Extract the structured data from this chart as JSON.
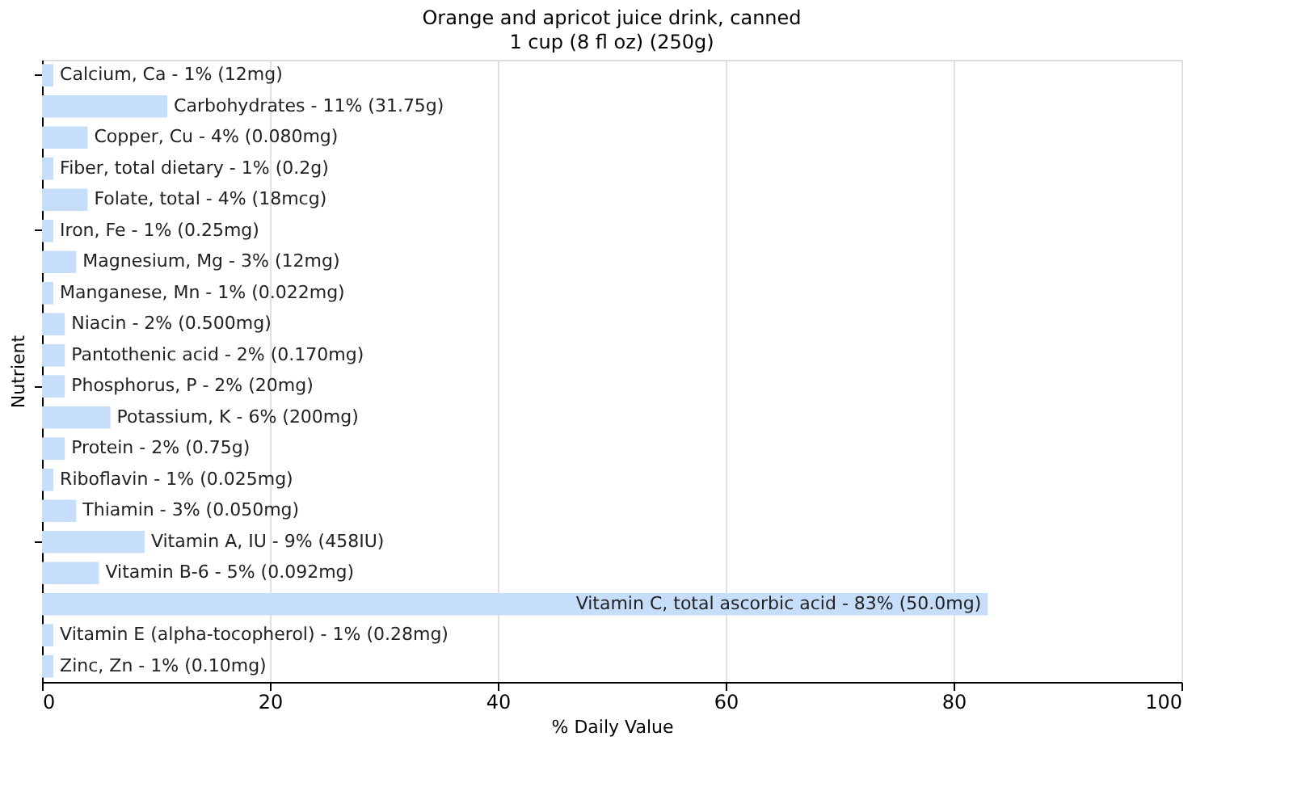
{
  "chart_data": {
    "type": "bar",
    "orientation": "horizontal",
    "title": "Orange and apricot juice drink, canned",
    "subtitle": "1 cup (8 fl oz) (250g)",
    "xlabel": "% Daily Value",
    "ylabel": "Nutrient",
    "categories": [
      "Calcium, Ca - 1% (12mg)",
      "Carbohydrates - 11% (31.75g)",
      "Copper, Cu - 4% (0.080mg)",
      "Fiber, total dietary - 1% (0.2g)",
      "Folate, total - 4% (18mcg)",
      "Iron, Fe - 1% (0.25mg)",
      "Magnesium, Mg - 3% (12mg)",
      "Manganese, Mn - 1% (0.022mg)",
      "Niacin - 2% (0.500mg)",
      "Pantothenic acid - 2% (0.170mg)",
      "Phosphorus, P - 2% (20mg)",
      "Potassium, K - 6% (200mg)",
      "Protein - 2% (0.75g)",
      "Riboflavin - 1% (0.025mg)",
      "Thiamin - 3% (0.050mg)",
      "Vitamin A, IU - 9% (458IU)",
      "Vitamin B-6 - 5% (0.092mg)",
      "Vitamin C, total ascorbic acid - 83% (50.0mg)",
      "Vitamin E (alpha-tocopherol) - 1% (0.28mg)",
      "Zinc, Zn - 1% (0.10mg)"
    ],
    "values": [
      1,
      11,
      4,
      1,
      4,
      1,
      3,
      1,
      2,
      2,
      2,
      6,
      2,
      1,
      3,
      9,
      5,
      83,
      1,
      1
    ],
    "color": "#c6defa",
    "xlim": [
      0,
      100
    ],
    "xticks": [
      0,
      20,
      40,
      60,
      80,
      100
    ],
    "grid": "x",
    "tick_labels": "x"
  }
}
